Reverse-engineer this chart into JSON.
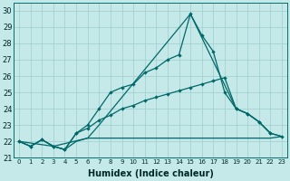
{
  "xlabel": "Humidex (Indice chaleur)",
  "background_color": "#c5e8e8",
  "grid_color": "#9ecece",
  "line_color": "#006868",
  "ylim": [
    21,
    30.5
  ],
  "xlim": [
    -0.5,
    23.5
  ],
  "yticks": [
    21,
    22,
    23,
    24,
    25,
    26,
    27,
    28,
    29,
    30
  ],
  "xticks": [
    0,
    1,
    2,
    3,
    4,
    5,
    6,
    7,
    8,
    9,
    10,
    11,
    12,
    13,
    14,
    15,
    16,
    17,
    18,
    19,
    20,
    21,
    22,
    23
  ],
  "line1_x": [
    0,
    1,
    2,
    3,
    4,
    5,
    6,
    7,
    8,
    9,
    10,
    11,
    12,
    13,
    14,
    15,
    16,
    17,
    18,
    19,
    20,
    21,
    22,
    23
  ],
  "line1_y": [
    22.0,
    21.7,
    22.1,
    21.7,
    21.5,
    22.0,
    22.2,
    22.2,
    22.2,
    22.2,
    22.2,
    22.2,
    22.2,
    22.2,
    22.2,
    22.2,
    22.2,
    22.2,
    22.2,
    22.2,
    22.2,
    22.2,
    22.2,
    22.3
  ],
  "line2_x": [
    0,
    3,
    6,
    7,
    15,
    19,
    20,
    21,
    22,
    23
  ],
  "line2_y": [
    22.0,
    21.7,
    22.2,
    23.0,
    29.8,
    24.0,
    23.7,
    23.2,
    22.5,
    22.3
  ],
  "line3_x": [
    0,
    1,
    2,
    3,
    4,
    5,
    6,
    7,
    8,
    9,
    10,
    11,
    12,
    13,
    14,
    15,
    16,
    17,
    18,
    19,
    20,
    21,
    22
  ],
  "line3_y": [
    22.0,
    21.7,
    22.1,
    21.7,
    21.5,
    22.5,
    22.8,
    23.3,
    23.6,
    24.0,
    24.2,
    24.5,
    24.7,
    24.9,
    25.1,
    25.3,
    25.5,
    25.7,
    25.9,
    24.0,
    23.7,
    23.2,
    22.5
  ],
  "line4_x": [
    0,
    1,
    2,
    3,
    4,
    5,
    6,
    7,
    8,
    9,
    10,
    11,
    12,
    13,
    14,
    15,
    16,
    17,
    18,
    19,
    20,
    21,
    22,
    23
  ],
  "line4_y": [
    22.0,
    21.7,
    22.1,
    21.7,
    21.5,
    22.5,
    23.0,
    24.0,
    25.0,
    25.3,
    25.5,
    26.2,
    26.5,
    27.0,
    27.3,
    29.8,
    28.5,
    27.5,
    25.0,
    24.0,
    23.7,
    23.2,
    22.5,
    22.3
  ]
}
